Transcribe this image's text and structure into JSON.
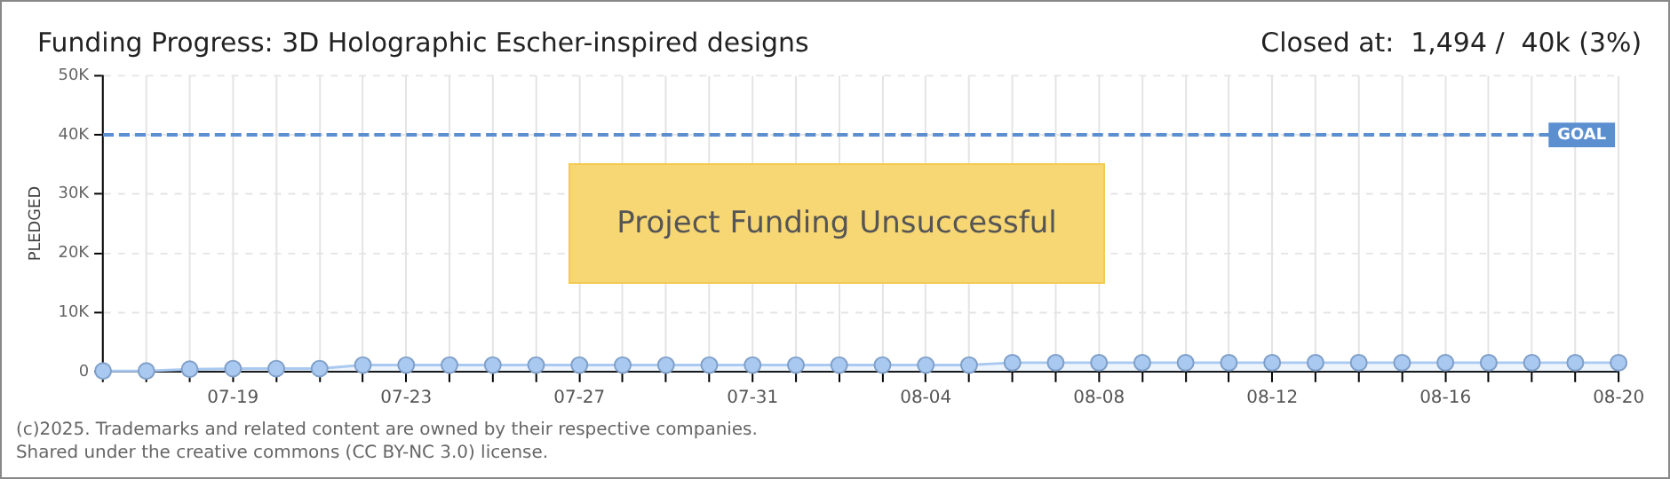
{
  "chart_data": {
    "type": "area",
    "title": "Funding Progress: 3D Holographic Escher-inspired designs",
    "subtitle": "Closed at:  1,494 /  40k (3%)",
    "ylabel": "PLEDGED",
    "x": [
      "--07-16",
      "--07-17",
      "--07-18",
      "--07-19",
      "--07-20",
      "--07-21",
      "--07-22",
      "--07-23",
      "--07-24",
      "--07-25",
      "--07-26",
      "--07-27",
      "--07-28",
      "--07-29",
      "--07-30",
      "--07-31",
      "--08-01",
      "--08-02",
      "--08-03",
      "--08-04",
      "--08-05",
      "--08-06",
      "--08-07",
      "--08-08",
      "--08-09",
      "--08-10",
      "--08-11",
      "--08-12",
      "--08-13",
      "--08-14",
      "--08-15",
      "--08-16",
      "--08-17",
      "--08-18",
      "--08-19",
      "--08-20"
    ],
    "series": [
      {
        "color": "#a9c9f0",
        "values": [
          100,
          100,
          400,
          500,
          500,
          500,
          1100,
          1100,
          1100,
          1100,
          1100,
          1100,
          1100,
          1100,
          1100,
          1100,
          1100,
          1100,
          1100,
          1100,
          1100,
          1500,
          1500,
          1500,
          1500,
          1500,
          1500,
          1500,
          1500,
          1500,
          1500,
          1500,
          1500,
          1500,
          1500,
          1500
        ]
      }
    ],
    "xlim": [
      "--07-16",
      "--08-20"
    ],
    "xticks": [
      {
        "value": "--07-16",
        "label": null
      },
      {
        "value": "--07-17",
        "label": null
      },
      {
        "value": "--07-18",
        "label": null
      },
      {
        "value": "--07-19",
        "label": "07-19"
      },
      {
        "value": "--07-20",
        "label": null
      },
      {
        "value": "--07-21",
        "label": null
      },
      {
        "value": "--07-22",
        "label": null
      },
      {
        "value": "--07-23",
        "label": "07-23"
      },
      {
        "value": "--07-24",
        "label": null
      },
      {
        "value": "--07-25",
        "label": null
      },
      {
        "value": "--07-26",
        "label": null
      },
      {
        "value": "--07-27",
        "label": "07-27"
      },
      {
        "value": "--07-28",
        "label": null
      },
      {
        "value": "--07-29",
        "label": null
      },
      {
        "value": "--07-30",
        "label": null
      },
      {
        "value": "--07-31",
        "label": "07-31"
      },
      {
        "value": "--08-01",
        "label": null
      },
      {
        "value": "--08-02",
        "label": null
      },
      {
        "value": "--08-03",
        "label": null
      },
      {
        "value": "--08-04",
        "label": "08-04"
      },
      {
        "value": "--08-05",
        "label": null
      },
      {
        "value": "--08-06",
        "label": null
      },
      {
        "value": "--08-07",
        "label": null
      },
      {
        "value": "--08-08",
        "label": "08-08"
      },
      {
        "value": "--08-09",
        "label": null
      },
      {
        "value": "--08-10",
        "label": null
      },
      {
        "value": "--08-11",
        "label": null
      },
      {
        "value": "--08-12",
        "label": "08-12"
      },
      {
        "value": "--08-13",
        "label": null
      },
      {
        "value": "--08-14",
        "label": null
      },
      {
        "value": "--08-15",
        "label": null
      },
      {
        "value": "--08-16",
        "label": "08-16"
      },
      {
        "value": "--08-17",
        "label": null
      },
      {
        "value": "--08-18",
        "label": null
      },
      {
        "value": "--08-19",
        "label": null
      },
      {
        "value": "--08-20",
        "label": "08-20"
      }
    ],
    "ylim": [
      0,
      50000
    ],
    "yticks": [
      0,
      {
        "value": 10000,
        "label": "10K"
      },
      {
        "value": 20000,
        "label": "20K"
      },
      {
        "value": 30000,
        "label": "30K"
      },
      {
        "value": 40000,
        "label": "40K"
      },
      {
        "value": 50000,
        "label": "50K"
      }
    ],
    "grid": true,
    "marker": "circle",
    "line_style": "solid",
    "legend": false,
    "ref_lines": [
      {
        "axis": "y",
        "value": 40000,
        "label": "GOAL",
        "color": "#5b8fd0",
        "line_style": "dashed"
      }
    ],
    "annotations": [
      "Project Funding Unsuccessful",
      "(c)2025. Trademarks and related content are owned by their respective companies.",
      "Shared under the creative commons (CC BY-NC 3.0) license."
    ]
  }
}
